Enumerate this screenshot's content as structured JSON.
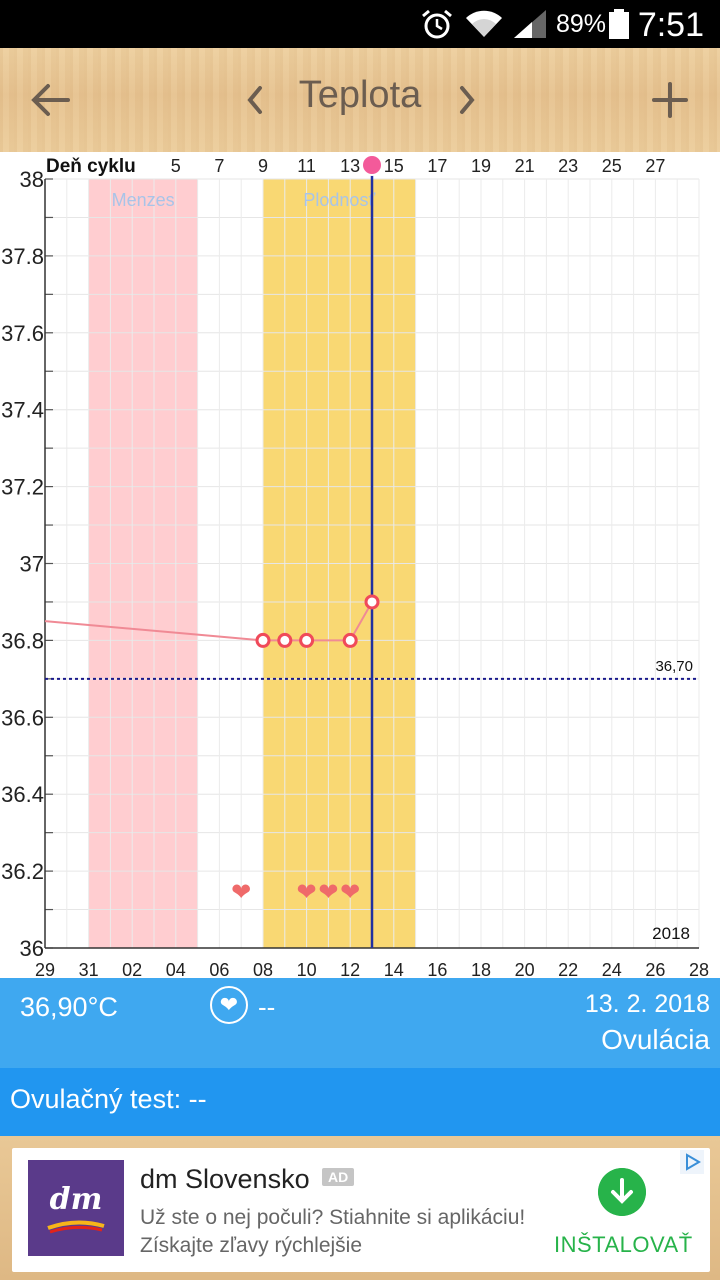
{
  "status_bar": {
    "battery": "89%",
    "time": "7:51",
    "icons": [
      "alarm-icon",
      "wifi-icon",
      "signal-icon",
      "battery-icon"
    ]
  },
  "header": {
    "title": "Teplota",
    "back_icon": "arrow-left-icon",
    "prev_icon": "chevron-left-icon",
    "next_icon": "chevron-right-icon",
    "add_icon": "plus-icon"
  },
  "chart_data": {
    "type": "line",
    "ylim": [
      36,
      38
    ],
    "y_ticks": [
      "36",
      "36.2",
      "36.4",
      "36.6",
      "36.8",
      "37",
      "37.2",
      "37.4",
      "37.6",
      "37.8",
      "38"
    ],
    "x_start_date": "2018-01-29",
    "x_days": 30,
    "date_ticks": [
      "29",
      "31",
      "02",
      "04",
      "06",
      "08",
      "10",
      "12",
      "14",
      "16",
      "18",
      "20",
      "22",
      "24",
      "26",
      "28"
    ],
    "cycle_day_label": "Deň cyklu",
    "cycle_day_ticks": [
      {
        "day_index": 6,
        "label": "5"
      },
      {
        "day_index": 8,
        "label": "7"
      },
      {
        "day_index": 10,
        "label": "9"
      },
      {
        "day_index": 12,
        "label": "11"
      },
      {
        "day_index": 14,
        "label": "13"
      },
      {
        "day_index": 16,
        "label": "15"
      },
      {
        "day_index": 18,
        "label": "17"
      },
      {
        "day_index": 20,
        "label": "19"
      },
      {
        "day_index": 22,
        "label": "21"
      },
      {
        "day_index": 24,
        "label": "23"
      },
      {
        "day_index": 26,
        "label": "25"
      },
      {
        "day_index": 28,
        "label": "27"
      }
    ],
    "bands": [
      {
        "label": "Menzes",
        "start": 2,
        "end": 7,
        "color": "#ffcdd0",
        "label_color": "#a8c4e8"
      },
      {
        "label": "Plodnosť",
        "start": 10,
        "end": 17,
        "color": "#f9d873",
        "label_color": "#a8c4e8"
      }
    ],
    "series": [
      {
        "color": "#f08a95",
        "points": [
          {
            "x": 0,
            "y": 36.85,
            "marker": false
          },
          {
            "x": 10,
            "y": 36.8,
            "marker": true
          },
          {
            "x": 11,
            "y": 36.8,
            "marker": true
          },
          {
            "x": 12,
            "y": 36.8,
            "marker": true
          },
          {
            "x": 14,
            "y": 36.8,
            "marker": true
          },
          {
            "x": 15,
            "y": 36.9,
            "marker": true
          }
        ]
      }
    ],
    "coverline": {
      "value": 36.7,
      "label": "36,70",
      "color": "#1a1a8c"
    },
    "ovulation_day": 15,
    "ovulation_color": "#2030a0",
    "intercourse_days": [
      9,
      12,
      13,
      14
    ],
    "heart_color": "#ef6a6a",
    "year_label": "2018",
    "grid": true
  },
  "info": {
    "temperature": "36,90°C",
    "intercourse": "--",
    "date": "13. 2. 2018",
    "phase": "Ovulácia",
    "heart_icon": "heart-icon"
  },
  "test": {
    "label": "Ovulačný test: --"
  },
  "ad": {
    "logo_text": "dm",
    "title": "dm Slovensko",
    "badge": "AD",
    "description": "Už ste o nej počuli? Stiahnite si aplikáciu! Získajte zľavy rýchlejšie",
    "install_label": "INŠTALOVAŤ",
    "colors": {
      "logo_bg": "#5a3a8a",
      "install": "#27b34a"
    }
  }
}
